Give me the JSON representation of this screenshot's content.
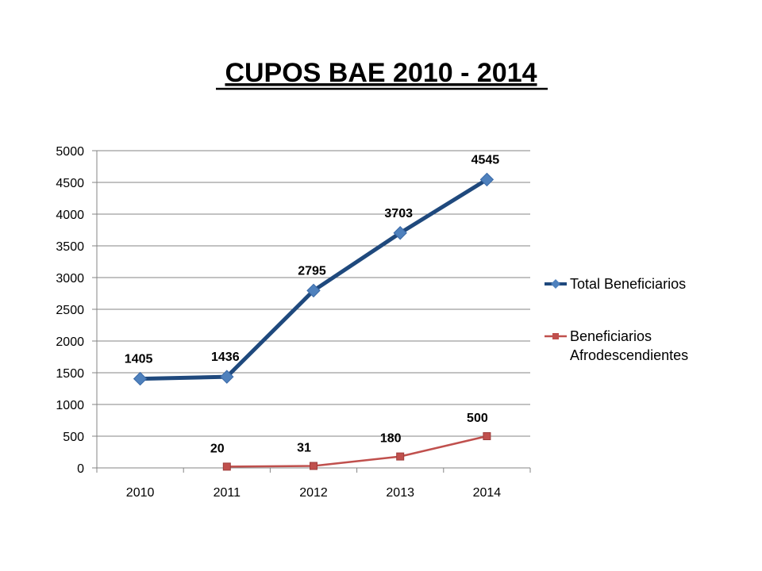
{
  "chart_data": {
    "type": "line",
    "title": "CUPOS BAE 2010 - 2014",
    "categories": [
      "2010",
      "2011",
      "2012",
      "2013",
      "2014"
    ],
    "ylim": [
      0,
      5000
    ],
    "y_ticks": [
      0,
      500,
      1000,
      1500,
      2000,
      2500,
      3000,
      3500,
      4000,
      4500,
      5000
    ],
    "grid": "horizontal",
    "legend_position": "right",
    "series": [
      {
        "name": "Total Beneficiarios",
        "values": [
          1405,
          1436,
          2795,
          3703,
          4545
        ],
        "color": "#1F497D",
        "marker_color": "#4F81BD",
        "marker": "diamond"
      },
      {
        "name": "Beneficiarios Afrodescendientes",
        "legend_lines": [
          "Beneficiarios",
          "Afrodescendientes"
        ],
        "values": [
          null,
          20,
          31,
          180,
          500
        ],
        "color": "#C0504D",
        "marker_color": "#C0504D",
        "marker": "square"
      }
    ]
  }
}
